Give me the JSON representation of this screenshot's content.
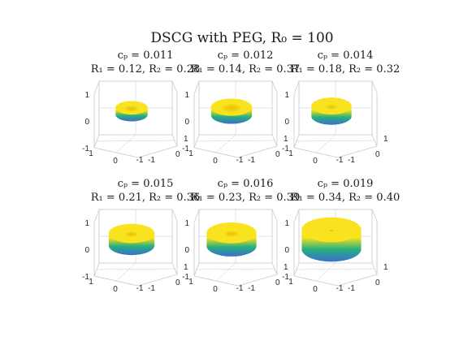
{
  "figure": {
    "title": "DSCG with PEG, R₀ = 100"
  },
  "chart_data": [
    {
      "type": "surface",
      "subtitle_line1": "cₚ = 0.011",
      "subtitle_line2": "R₁ = 0.12, R₂ = 0.28",
      "cP": 0.011,
      "R1": 0.12,
      "R2": 0.28,
      "z_ticks": [
        "1",
        "0",
        "-1"
      ],
      "x_ticks": [
        "1",
        "0",
        "-1"
      ],
      "y_ticks": [
        "-1",
        "0",
        "1"
      ],
      "xlim": [
        -1,
        1
      ],
      "ylim": [
        -1,
        1
      ],
      "zlim": [
        -1,
        1
      ],
      "grid": true
    },
    {
      "type": "surface",
      "subtitle_line1": "cₚ = 0.012",
      "subtitle_line2": "R₁ = 0.14, R₂ = 0.37",
      "cP": 0.012,
      "R1": 0.14,
      "R2": 0.37,
      "z_ticks": [
        "1",
        "0",
        "-1"
      ],
      "x_ticks": [
        "1",
        "0",
        "-1"
      ],
      "y_ticks": [
        "-1",
        "0",
        "1"
      ],
      "xlim": [
        -1,
        1
      ],
      "ylim": [
        -1,
        1
      ],
      "zlim": [
        -1,
        1
      ],
      "grid": true
    },
    {
      "type": "surface",
      "subtitle_line1": "cₚ = 0.014",
      "subtitle_line2": "R₁ = 0.18, R₂ = 0.32",
      "cP": 0.014,
      "R1": 0.18,
      "R2": 0.32,
      "z_ticks": [
        "1",
        "0",
        "-1"
      ],
      "x_ticks": [
        "1",
        "0",
        "-1"
      ],
      "y_ticks": [
        "-1",
        "0",
        "1"
      ],
      "xlim": [
        -1,
        1
      ],
      "ylim": [
        -1,
        1
      ],
      "zlim": [
        -1,
        1
      ],
      "grid": true
    },
    {
      "type": "surface",
      "subtitle_line1": "cₚ = 0.015",
      "subtitle_line2": "R₁ = 0.21, R₂ = 0.36",
      "cP": 0.015,
      "R1": 0.21,
      "R2": 0.36,
      "z_ticks": [
        "1",
        "0",
        "-1"
      ],
      "x_ticks": [
        "1",
        "0",
        "-1"
      ],
      "y_ticks": [
        "-1",
        "0",
        "1"
      ],
      "xlim": [
        -1,
        1
      ],
      "ylim": [
        -1,
        1
      ],
      "zlim": [
        -1,
        1
      ],
      "grid": true
    },
    {
      "type": "surface",
      "subtitle_line1": "cₚ = 0.016",
      "subtitle_line2": "R₁ = 0.23, R₂ = 0.39",
      "cP": 0.016,
      "R1": 0.23,
      "R2": 0.39,
      "z_ticks": [
        "1",
        "0",
        "-1"
      ],
      "x_ticks": [
        "1",
        "0",
        "-1"
      ],
      "y_ticks": [
        "-1",
        "0",
        "1"
      ],
      "xlim": [
        -1,
        1
      ],
      "ylim": [
        -1,
        1
      ],
      "zlim": [
        -1,
        1
      ],
      "grid": true
    },
    {
      "type": "surface",
      "subtitle_line1": "cₚ = 0.019",
      "subtitle_line2": "R₁ = 0.34, R₂ = 0.40",
      "cP": 0.019,
      "R1": 0.34,
      "R2": 0.4,
      "z_ticks": [
        "1",
        "0",
        "-1"
      ],
      "x_ticks": [
        "1",
        "0",
        "-1"
      ],
      "y_ticks": [
        "-1",
        "0",
        "1"
      ],
      "xlim": [
        -1,
        1
      ],
      "ylim": [
        -1,
        1
      ],
      "zlim": [
        -1,
        1
      ],
      "grid": true
    }
  ],
  "colors": {
    "axes_box": "#c8c8c8",
    "tick_text": "#262626",
    "title_text": "#1a1a1a",
    "surface_top": "#f9e21e",
    "surface_mid": "#8fd14a",
    "surface_low": "#27b07e",
    "surface_bottom": "#3b6ecf"
  }
}
